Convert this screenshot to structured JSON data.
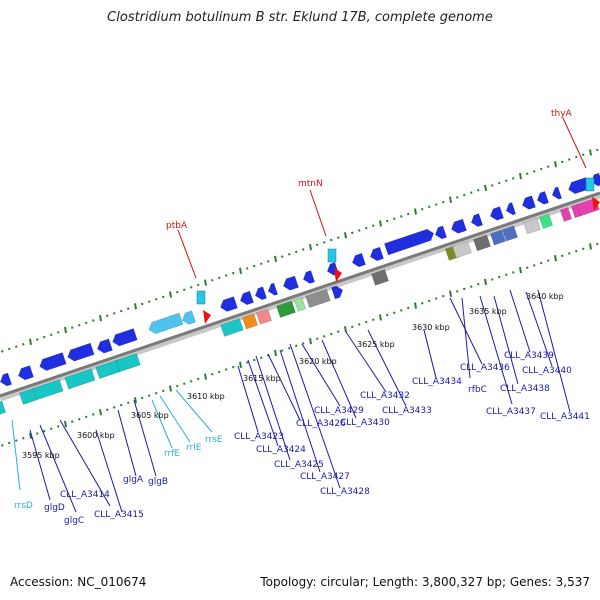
{
  "title": "Clostridium botulinum B str. Eklund 17B, complete genome",
  "accession": "Accession: NC_010674",
  "summary": "Topology: circular; Length: 3,800,327 bp; Genes: 3,537",
  "colors": {
    "backbone": "#8c8c8c",
    "tick": "#2e7d32",
    "gene_label": "#1a1aa8",
    "rna_label": "#2ab0d0",
    "highlight_label": "#cc1111",
    "cds": "#1f2fe0",
    "rna": "#4fc3ee",
    "rrna_box": "#18c6c6"
  },
  "kbp_labels": [
    "3595 kbp",
    "3600 kbp",
    "3605 kbp",
    "3610 kbp",
    "3615 kbp",
    "3620 kbp",
    "3625 kbp",
    "3630 kbp",
    "3635 kbp",
    "3640 kbp"
  ],
  "highlight_genes": [
    "ptbA",
    "mtnN",
    "thyA"
  ],
  "gene_labels": [
    "CLL_A3414",
    "CLL_A3415",
    "glgD",
    "glgC",
    "glgA",
    "glgB",
    "CLL_A3423",
    "CLL_A3424",
    "CLL_A3425",
    "CLL_A3426",
    "CLL_A3427",
    "CLL_A3428",
    "CLL_A3429",
    "CLL_A3430",
    "CLL_A3432",
    "CLL_A3433",
    "CLL_A3434",
    "CLL_A3436",
    "rfbC",
    "CLL_A3437",
    "CLL_A3438",
    "CLL_A3439",
    "CLL_A3440",
    "CLL_A3441"
  ],
  "rna_labels": [
    "rrsD",
    "rrfE",
    "rrlE",
    "rrsE"
  ]
}
